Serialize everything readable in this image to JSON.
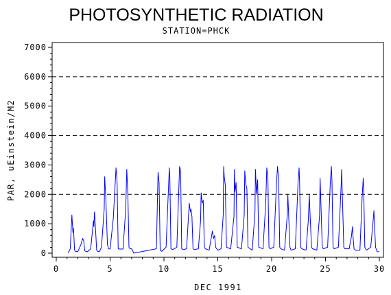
{
  "chart_data": {
    "type": "line",
    "title": "PHOTOSYNTHETIC RADIATION",
    "subtitle": "STATION=PHCK",
    "xlabel": "DEC 1991",
    "ylabel": "PAR, uEinstein/M2",
    "xlim": [
      -0.5,
      30.2
    ],
    "ylim": [
      -100,
      7200
    ],
    "xticks": [
      0,
      5,
      10,
      15,
      20,
      25,
      30
    ],
    "yticks": [
      0,
      1000,
      2000,
      3000,
      4000,
      5000,
      6000,
      7000
    ],
    "reference_lines": [
      2000,
      4000,
      6000
    ],
    "grid": false,
    "colors": {
      "line": "#0000ff",
      "axis": "#000000",
      "reference": "#000000"
    },
    "series": [
      {
        "x": [
          1.1,
          1.3,
          1.45,
          1.55,
          1.6,
          1.7,
          1.8,
          2.0,
          2.3,
          2.45,
          2.55,
          2.65,
          2.75,
          2.9,
          3.2,
          3.45,
          3.5,
          3.55,
          3.65,
          3.75,
          3.85,
          4.0,
          4.2,
          4.45,
          4.5,
          4.6,
          4.75,
          4.85,
          5.0,
          5.3,
          5.55,
          5.65,
          5.75,
          5.85,
          6.2,
          6.45,
          6.55,
          6.65,
          6.75,
          6.85,
          7.0,
          7.2,
          9.3,
          9.45,
          9.55,
          9.65,
          9.8,
          10.2,
          10.45,
          10.5,
          10.55,
          10.65,
          10.8,
          11.2,
          11.45,
          11.55,
          11.65,
          11.8,
          12.1,
          12.35,
          12.45,
          12.5,
          12.6,
          12.7,
          12.8,
          13.2,
          13.4,
          13.45,
          13.55,
          13.65,
          13.75,
          13.85,
          14.2,
          14.5,
          14.6,
          14.7,
          14.8,
          15.0,
          15.3,
          15.5,
          15.55,
          15.6,
          15.7,
          15.8,
          16.2,
          16.5,
          16.55,
          16.6,
          16.7,
          16.8,
          17.2,
          17.45,
          17.5,
          17.6,
          17.7,
          17.8,
          18.2,
          18.45,
          18.5,
          18.6,
          18.7,
          18.8,
          19.2,
          19.45,
          19.55,
          19.65,
          19.75,
          19.85,
          20.2,
          20.45,
          20.55,
          20.65,
          20.75,
          20.85,
          21.2,
          21.45,
          21.5,
          21.55,
          21.7,
          21.8,
          22.2,
          22.45,
          22.55,
          22.6,
          22.7,
          22.8,
          23.2,
          23.4,
          23.5,
          23.55,
          23.7,
          23.8,
          24.2,
          24.45,
          24.5,
          24.55,
          24.7,
          24.8,
          25.2,
          25.45,
          25.55,
          25.6,
          25.7,
          25.8,
          26.2,
          26.45,
          26.5,
          26.55,
          26.7,
          26.8,
          27.2,
          27.4,
          27.5,
          27.55,
          27.65,
          27.8,
          28.2,
          28.4,
          28.5,
          28.55,
          28.65,
          28.8,
          29.2,
          29.4,
          29.5,
          29.55,
          29.65,
          29.8,
          30.0
        ],
        "y": [
          10,
          150,
          1300,
          700,
          850,
          100,
          60,
          50,
          300,
          500,
          420,
          80,
          60,
          50,
          150,
          1100,
          900,
          1400,
          800,
          100,
          60,
          50,
          200,
          1500,
          2600,
          1900,
          300,
          150,
          140,
          1200,
          2900,
          2400,
          150,
          140,
          140,
          1500,
          2850,
          2000,
          200,
          150,
          150,
          0,
          150,
          2750,
          2400,
          100,
          60,
          200,
          2500,
          2900,
          2600,
          150,
          120,
          200,
          2950,
          2800,
          150,
          120,
          150,
          1700,
          1400,
          1500,
          1250,
          150,
          120,
          150,
          1100,
          2050,
          1700,
          1800,
          200,
          150,
          100,
          750,
          500,
          600,
          200,
          100,
          150,
          1300,
          2950,
          2600,
          2300,
          200,
          150,
          1250,
          2850,
          2100,
          2400,
          200,
          150,
          1300,
          2800,
          2350,
          2200,
          200,
          100,
          1400,
          2850,
          2000,
          2500,
          200,
          150,
          1700,
          2900,
          2600,
          200,
          150,
          200,
          2400,
          2950,
          2500,
          200,
          150,
          100,
          1300,
          2000,
          1600,
          200,
          100,
          150,
          2400,
          2900,
          2400,
          200,
          150,
          100,
          1100,
          2000,
          1500,
          200,
          150,
          100,
          1300,
          2550,
          2000,
          200,
          150,
          200,
          2450,
          2950,
          2500,
          200,
          150,
          200,
          2300,
          2850,
          2200,
          200,
          150,
          150,
          550,
          900,
          600,
          150,
          100,
          100,
          1900,
          2550,
          2200,
          200,
          100,
          200,
          1000,
          1450,
          1000,
          200,
          50,
          50
        ]
      }
    ]
  }
}
